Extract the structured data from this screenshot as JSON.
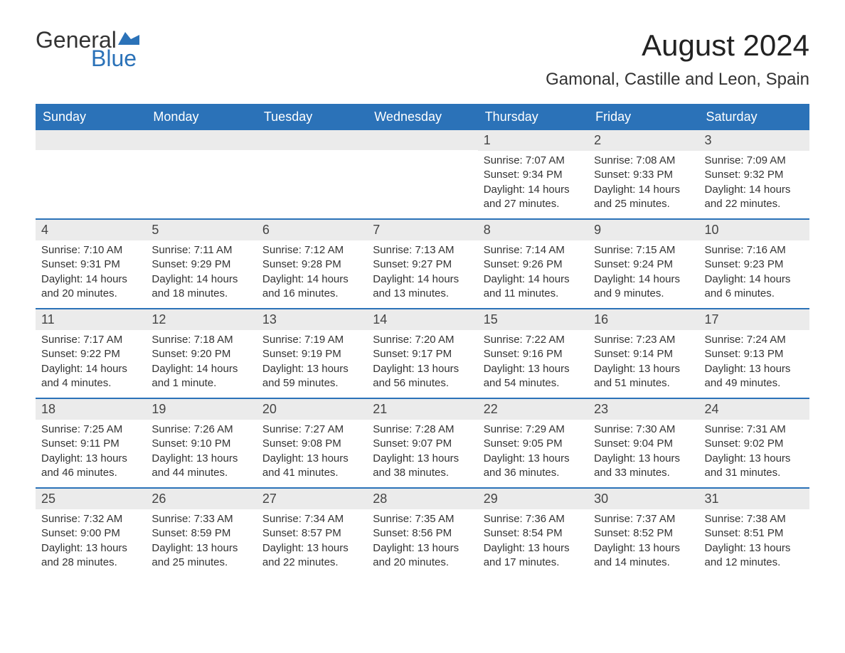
{
  "brand": {
    "word1": "General",
    "word2": "Blue",
    "logo_color": "#2b72b8",
    "text_color": "#333333"
  },
  "title": "August 2024",
  "location": "Gamonal, Castille and Leon, Spain",
  "colors": {
    "header_bg": "#2b72b8",
    "header_text": "#ffffff",
    "daynum_bg": "#ebebeb",
    "week_border": "#2b72b8",
    "body_text": "#333333",
    "background": "#ffffff"
  },
  "fonts": {
    "title_size_pt": 42,
    "location_size_pt": 24,
    "dayheader_size_pt": 18,
    "daynum_size_pt": 18,
    "detail_size_pt": 15
  },
  "day_names": [
    "Sunday",
    "Monday",
    "Tuesday",
    "Wednesday",
    "Thursday",
    "Friday",
    "Saturday"
  ],
  "weeks": [
    [
      null,
      null,
      null,
      null,
      {
        "n": "1",
        "sunrise": "Sunrise: 7:07 AM",
        "sunset": "Sunset: 9:34 PM",
        "daylight": "Daylight: 14 hours and 27 minutes."
      },
      {
        "n": "2",
        "sunrise": "Sunrise: 7:08 AM",
        "sunset": "Sunset: 9:33 PM",
        "daylight": "Daylight: 14 hours and 25 minutes."
      },
      {
        "n": "3",
        "sunrise": "Sunrise: 7:09 AM",
        "sunset": "Sunset: 9:32 PM",
        "daylight": "Daylight: 14 hours and 22 minutes."
      }
    ],
    [
      {
        "n": "4",
        "sunrise": "Sunrise: 7:10 AM",
        "sunset": "Sunset: 9:31 PM",
        "daylight": "Daylight: 14 hours and 20 minutes."
      },
      {
        "n": "5",
        "sunrise": "Sunrise: 7:11 AM",
        "sunset": "Sunset: 9:29 PM",
        "daylight": "Daylight: 14 hours and 18 minutes."
      },
      {
        "n": "6",
        "sunrise": "Sunrise: 7:12 AM",
        "sunset": "Sunset: 9:28 PM",
        "daylight": "Daylight: 14 hours and 16 minutes."
      },
      {
        "n": "7",
        "sunrise": "Sunrise: 7:13 AM",
        "sunset": "Sunset: 9:27 PM",
        "daylight": "Daylight: 14 hours and 13 minutes."
      },
      {
        "n": "8",
        "sunrise": "Sunrise: 7:14 AM",
        "sunset": "Sunset: 9:26 PM",
        "daylight": "Daylight: 14 hours and 11 minutes."
      },
      {
        "n": "9",
        "sunrise": "Sunrise: 7:15 AM",
        "sunset": "Sunset: 9:24 PM",
        "daylight": "Daylight: 14 hours and 9 minutes."
      },
      {
        "n": "10",
        "sunrise": "Sunrise: 7:16 AM",
        "sunset": "Sunset: 9:23 PM",
        "daylight": "Daylight: 14 hours and 6 minutes."
      }
    ],
    [
      {
        "n": "11",
        "sunrise": "Sunrise: 7:17 AM",
        "sunset": "Sunset: 9:22 PM",
        "daylight": "Daylight: 14 hours and 4 minutes."
      },
      {
        "n": "12",
        "sunrise": "Sunrise: 7:18 AM",
        "sunset": "Sunset: 9:20 PM",
        "daylight": "Daylight: 14 hours and 1 minute."
      },
      {
        "n": "13",
        "sunrise": "Sunrise: 7:19 AM",
        "sunset": "Sunset: 9:19 PM",
        "daylight": "Daylight: 13 hours and 59 minutes."
      },
      {
        "n": "14",
        "sunrise": "Sunrise: 7:20 AM",
        "sunset": "Sunset: 9:17 PM",
        "daylight": "Daylight: 13 hours and 56 minutes."
      },
      {
        "n": "15",
        "sunrise": "Sunrise: 7:22 AM",
        "sunset": "Sunset: 9:16 PM",
        "daylight": "Daylight: 13 hours and 54 minutes."
      },
      {
        "n": "16",
        "sunrise": "Sunrise: 7:23 AM",
        "sunset": "Sunset: 9:14 PM",
        "daylight": "Daylight: 13 hours and 51 minutes."
      },
      {
        "n": "17",
        "sunrise": "Sunrise: 7:24 AM",
        "sunset": "Sunset: 9:13 PM",
        "daylight": "Daylight: 13 hours and 49 minutes."
      }
    ],
    [
      {
        "n": "18",
        "sunrise": "Sunrise: 7:25 AM",
        "sunset": "Sunset: 9:11 PM",
        "daylight": "Daylight: 13 hours and 46 minutes."
      },
      {
        "n": "19",
        "sunrise": "Sunrise: 7:26 AM",
        "sunset": "Sunset: 9:10 PM",
        "daylight": "Daylight: 13 hours and 44 minutes."
      },
      {
        "n": "20",
        "sunrise": "Sunrise: 7:27 AM",
        "sunset": "Sunset: 9:08 PM",
        "daylight": "Daylight: 13 hours and 41 minutes."
      },
      {
        "n": "21",
        "sunrise": "Sunrise: 7:28 AM",
        "sunset": "Sunset: 9:07 PM",
        "daylight": "Daylight: 13 hours and 38 minutes."
      },
      {
        "n": "22",
        "sunrise": "Sunrise: 7:29 AM",
        "sunset": "Sunset: 9:05 PM",
        "daylight": "Daylight: 13 hours and 36 minutes."
      },
      {
        "n": "23",
        "sunrise": "Sunrise: 7:30 AM",
        "sunset": "Sunset: 9:04 PM",
        "daylight": "Daylight: 13 hours and 33 minutes."
      },
      {
        "n": "24",
        "sunrise": "Sunrise: 7:31 AM",
        "sunset": "Sunset: 9:02 PM",
        "daylight": "Daylight: 13 hours and 31 minutes."
      }
    ],
    [
      {
        "n": "25",
        "sunrise": "Sunrise: 7:32 AM",
        "sunset": "Sunset: 9:00 PM",
        "daylight": "Daylight: 13 hours and 28 minutes."
      },
      {
        "n": "26",
        "sunrise": "Sunrise: 7:33 AM",
        "sunset": "Sunset: 8:59 PM",
        "daylight": "Daylight: 13 hours and 25 minutes."
      },
      {
        "n": "27",
        "sunrise": "Sunrise: 7:34 AM",
        "sunset": "Sunset: 8:57 PM",
        "daylight": "Daylight: 13 hours and 22 minutes."
      },
      {
        "n": "28",
        "sunrise": "Sunrise: 7:35 AM",
        "sunset": "Sunset: 8:56 PM",
        "daylight": "Daylight: 13 hours and 20 minutes."
      },
      {
        "n": "29",
        "sunrise": "Sunrise: 7:36 AM",
        "sunset": "Sunset: 8:54 PM",
        "daylight": "Daylight: 13 hours and 17 minutes."
      },
      {
        "n": "30",
        "sunrise": "Sunrise: 7:37 AM",
        "sunset": "Sunset: 8:52 PM",
        "daylight": "Daylight: 13 hours and 14 minutes."
      },
      {
        "n": "31",
        "sunrise": "Sunrise: 7:38 AM",
        "sunset": "Sunset: 8:51 PM",
        "daylight": "Daylight: 13 hours and 12 minutes."
      }
    ]
  ]
}
